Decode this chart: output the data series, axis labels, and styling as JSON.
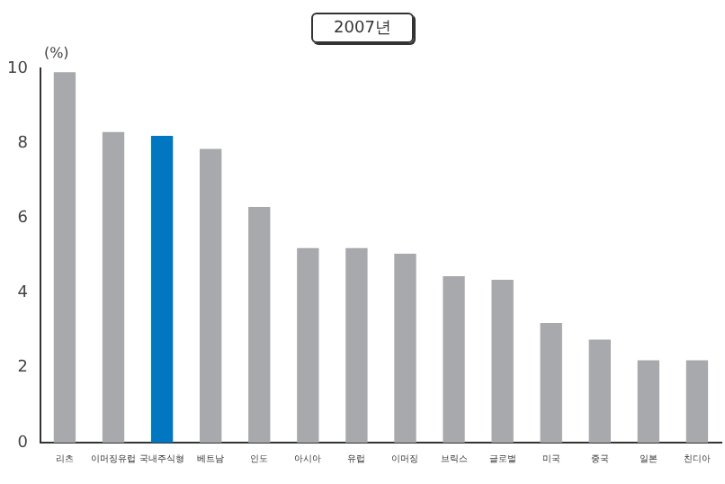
{
  "chart_data": {
    "type": "bar",
    "title": "2007년",
    "ylabel": "(%)",
    "categories": [
      "리츠",
      "이머징유럽",
      "국내주식형",
      "베트남",
      "인도",
      "아시아",
      "유럽",
      "이머징",
      "브릭스",
      "글로벌",
      "미국",
      "중국",
      "일본",
      "친디아"
    ],
    "values": [
      9.9,
      8.3,
      8.2,
      7.85,
      6.3,
      5.2,
      5.2,
      5.05,
      4.45,
      4.35,
      3.2,
      2.75,
      2.2,
      2.2
    ],
    "colors": [
      "#a7a9ac",
      "#a7a9ac",
      "#0077c0",
      "#a7a9ac",
      "#a7a9ac",
      "#a7a9ac",
      "#a7a9ac",
      "#a7a9ac",
      "#a7a9ac",
      "#a7a9ac",
      "#a7a9ac",
      "#a7a9ac",
      "#a7a9ac",
      "#a7a9ac"
    ],
    "ylim": [
      0,
      10
    ],
    "yticks": [
      0,
      2,
      4,
      6,
      8,
      10
    ],
    "grid": false,
    "legend": false
  }
}
